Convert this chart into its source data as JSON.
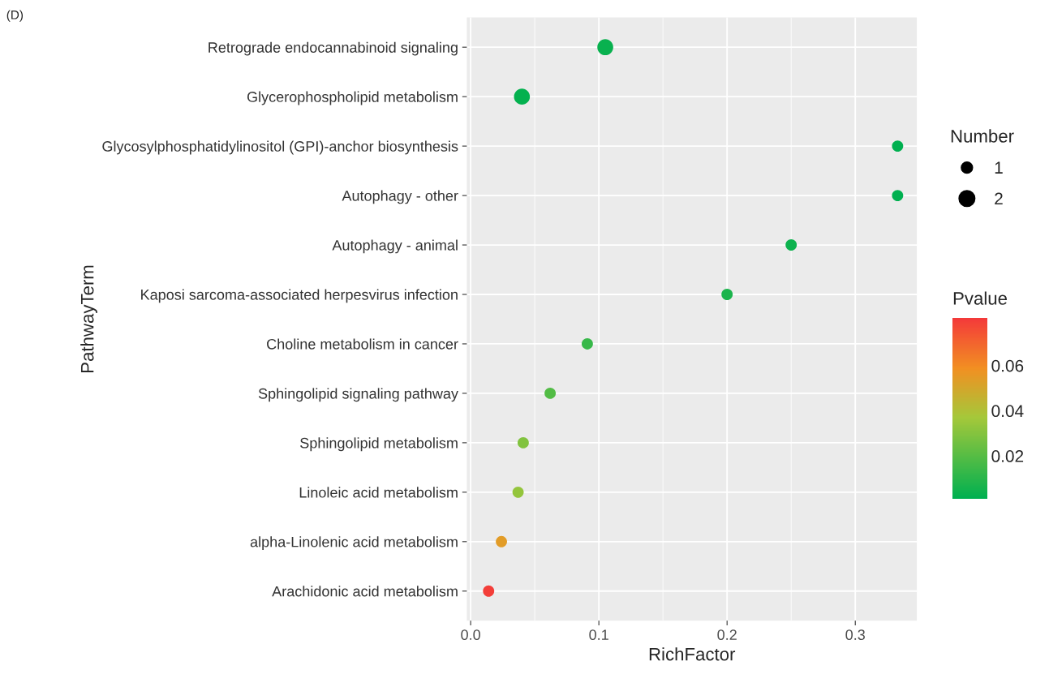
{
  "chart_data": {
    "type": "scatter",
    "orientation": "horizontal",
    "categories": [
      "Retrograde endocannabinoid signaling",
      "Glycerophospholipid metabolism",
      "Glycosylphosphatidylinositol (GPI)-anchor biosynthesis",
      "Autophagy - other",
      "Autophagy - animal",
      "Kaposi sarcoma-associated herpesvirus infection",
      "Choline metabolism in cancer",
      "Sphingolipid signaling pathway",
      "Sphingolipid metabolism",
      "Linoleic acid metabolism",
      "alpha-Linolenic acid metabolism",
      "Arachidonic acid metabolism"
    ],
    "values": [
      0.105,
      0.04,
      0.333,
      0.333,
      0.25,
      0.2,
      0.091,
      0.062,
      0.041,
      0.037,
      0.024,
      0.014
    ],
    "sizes": [
      2,
      2,
      1,
      1,
      1,
      1,
      1,
      1,
      1,
      1,
      1,
      1
    ],
    "size_legend": [
      1,
      2
    ],
    "cvalues": [
      0.003,
      0.002,
      0.001,
      0.001,
      0.004,
      0.007,
      0.013,
      0.019,
      0.029,
      0.033,
      0.054,
      0.08
    ],
    "clim": [
      0.001,
      0.081
    ],
    "cticks": [
      0.02,
      0.04,
      0.06
    ],
    "xlim": [
      -0.003,
      0.348
    ],
    "xticks": [
      {
        "value": 0,
        "label": "0.0"
      },
      0.1,
      0.2,
      0.3
    ],
    "xlabel": "RichFactor",
    "ylabel": "PathwayTerm",
    "legend_title": "Number",
    "clabel": "Pvalue",
    "grid": true,
    "marker": "circle",
    "annotations": [
      "(D)"
    ]
  }
}
